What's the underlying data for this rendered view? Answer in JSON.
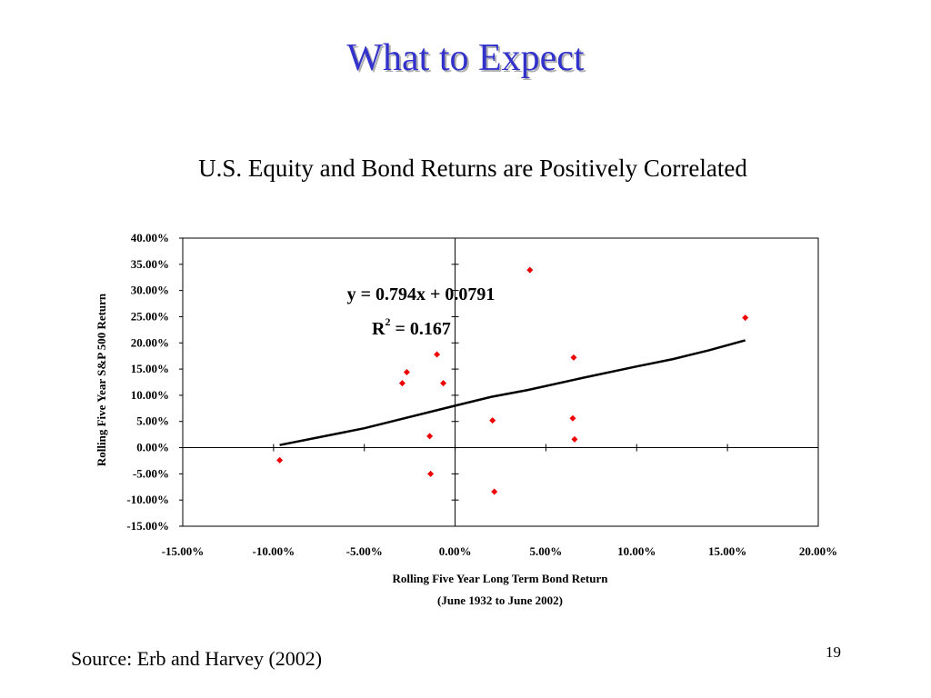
{
  "slide": {
    "title": "What to Expect",
    "page_number": "19",
    "source": "Source: Erb and Harvey (2002)",
    "title_color": "#3333cc"
  },
  "chart_data": {
    "type": "scatter",
    "title": "U.S. Equity and Bond Returns are Positively Correlated",
    "xlabel": "Rolling Five Year Long Term Bond Return",
    "xlabel_note": "(June 1932 to June 2002)",
    "ylabel": "Rolling Five Year S&P 500 Return",
    "xlim": [
      -0.15,
      0.2
    ],
    "ylim": [
      -0.15,
      0.4
    ],
    "x_ticks": [
      -0.15,
      -0.1,
      -0.05,
      0.0,
      0.05,
      0.1,
      0.15,
      0.2
    ],
    "x_tick_labels": [
      "-15.00%",
      "-10.00%",
      "-5.00%",
      "0.00%",
      "5.00%",
      "10.00%",
      "15.00%",
      "20.00%"
    ],
    "y_ticks": [
      -0.15,
      -0.1,
      -0.05,
      0.0,
      0.05,
      0.1,
      0.15,
      0.2,
      0.25,
      0.3,
      0.35,
      0.4
    ],
    "y_tick_labels": [
      "-15.00%",
      "-10.00%",
      "-5.00%",
      "0.00%",
      "5.00%",
      "10.00%",
      "15.00%",
      "20.00%",
      "25.00%",
      "30.00%",
      "35.00%",
      "40.00%"
    ],
    "grid": false,
    "marker_color": "#ee0000",
    "points": [
      {
        "x": -0.0966,
        "y": -0.024
      },
      {
        "x": -0.0291,
        "y": 0.123
      },
      {
        "x": -0.0266,
        "y": 0.144
      },
      {
        "x": -0.014,
        "y": 0.022
      },
      {
        "x": -0.0135,
        "y": -0.05
      },
      {
        "x": -0.01,
        "y": 0.178
      },
      {
        "x": -0.0065,
        "y": 0.123
      },
      {
        "x": 0.0206,
        "y": 0.052
      },
      {
        "x": 0.0216,
        "y": -0.084
      },
      {
        "x": 0.0412,
        "y": 0.339
      },
      {
        "x": 0.0648,
        "y": 0.056
      },
      {
        "x": 0.0653,
        "y": 0.172
      },
      {
        "x": 0.0658,
        "y": 0.016
      },
      {
        "x": 0.1598,
        "y": 0.248
      }
    ],
    "trendline": {
      "type": "polynomial",
      "points": [
        {
          "x": -0.0966,
          "y": 0.005
        },
        {
          "x": -0.05,
          "y": 0.037
        },
        {
          "x": 0.0,
          "y": 0.08
        },
        {
          "x": 0.02,
          "y": 0.097
        },
        {
          "x": 0.04,
          "y": 0.11
        },
        {
          "x": 0.07,
          "y": 0.133
        },
        {
          "x": 0.1,
          "y": 0.155
        },
        {
          "x": 0.12,
          "y": 0.169
        },
        {
          "x": 0.14,
          "y": 0.186
        },
        {
          "x": 0.1598,
          "y": 0.205
        }
      ]
    },
    "equation": {
      "line1": "y = 0.794x + 0.0791",
      "r2_base": "R",
      "r2_exp": "2",
      "r2_rest": " = 0.167"
    }
  }
}
